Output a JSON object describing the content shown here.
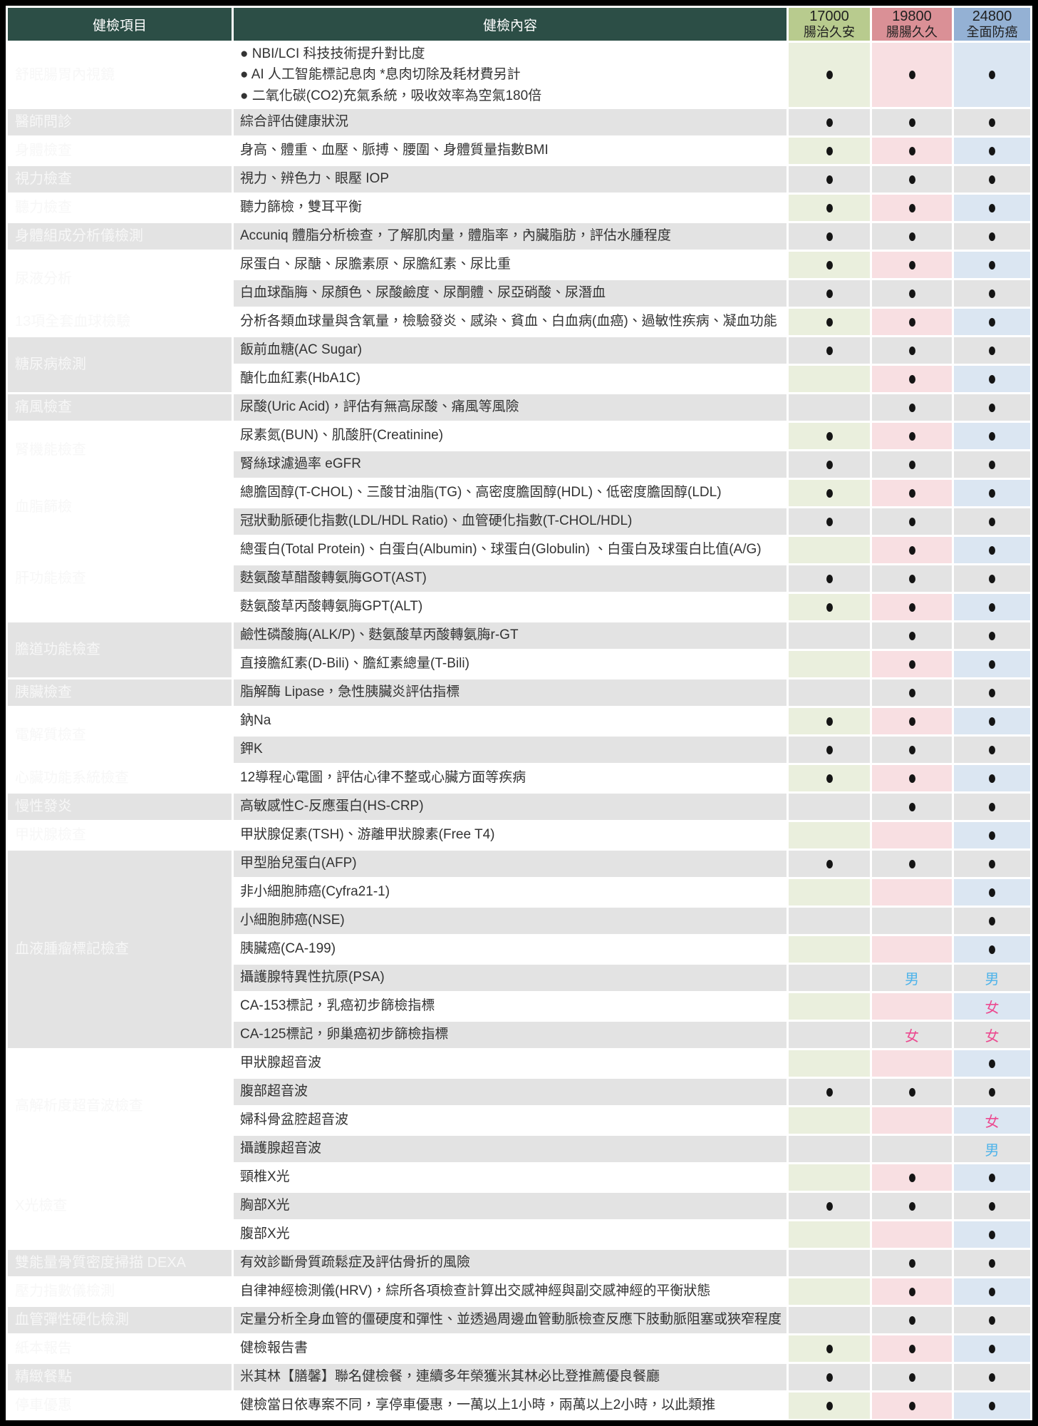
{
  "header": {
    "item_col": "健檢項目",
    "content_col": "健檢內容",
    "plans": [
      {
        "price": "17000",
        "name": "腸治久安"
      },
      {
        "price": "19800",
        "name": "腸腸久久"
      },
      {
        "price": "24800",
        "name": "全面防癌"
      }
    ]
  },
  "legend": {
    "male": "男",
    "female": "女",
    "dot": "●"
  },
  "colors": {
    "dark-green": "#2c4e46",
    "row-gray": "#e3e3e3",
    "content-text": "#333333",
    "item-text": "#f7f7f7",
    "header-text": "#1f1f1f",
    "dot": "#151515",
    "border": "#000000",
    "plan0-header": "#b8cb8e",
    "plan1-header": "#da9096",
    "plan2-header": "#94b1d4",
    "plan0-tint": "#eaefdd",
    "plan1-tint": "#f8dfe2",
    "plan2-tint": "#dbe6f2",
    "male": "#4db3ea",
    "female": "#ec4a90"
  },
  "groups": [
    {
      "item": "舒眠腸胃內視鏡",
      "rows": [
        {
          "lines": [
            "● NBI/LCI 科技技術提升對比度",
            "● AI 人工智能標記息肉 *息肉切除及耗材費另計",
            "● 二氧化碳(CO2)充氣系統，吸收效率為空氣180倍"
          ],
          "marks": [
            "dot",
            "dot",
            "dot"
          ],
          "tall": true
        }
      ]
    },
    {
      "item": "醫師問診",
      "rows": [
        {
          "content": "綜合評估健康狀況",
          "marks": [
            "dot",
            "dot",
            "dot"
          ]
        }
      ]
    },
    {
      "item": "身體檢查",
      "rows": [
        {
          "content": "身高、體重、血壓、脈搏、腰圍、身體質量指數BMI",
          "marks": [
            "dot",
            "dot",
            "dot"
          ]
        }
      ]
    },
    {
      "item": "視力檢查",
      "rows": [
        {
          "content": "視力、辨色力、眼壓 IOP",
          "marks": [
            "dot",
            "dot",
            "dot"
          ]
        }
      ]
    },
    {
      "item": "聽力檢查",
      "rows": [
        {
          "content": "聽力篩檢，雙耳平衡",
          "marks": [
            "dot",
            "dot",
            "dot"
          ]
        }
      ]
    },
    {
      "item": "身體組成分析儀檢測",
      "rows": [
        {
          "content": "Accuniq 體脂分析檢查，了解肌肉量，體脂率，內臟脂肪，評估水腫程度",
          "marks": [
            "dot",
            "dot",
            "dot"
          ]
        }
      ]
    },
    {
      "item": "尿液分析",
      "rows": [
        {
          "content": "尿蛋白、尿醣、尿膽素原、尿膽紅素、尿比重",
          "marks": [
            "dot",
            "dot",
            "dot"
          ]
        },
        {
          "content": "白血球酯脢、尿顏色、尿酸鹼度、尿酮體、尿亞硝酸、尿潛血",
          "marks": [
            "dot",
            "dot",
            "dot"
          ]
        }
      ]
    },
    {
      "item": "13項全套血球檢驗",
      "rows": [
        {
          "content": "分析各類血球量與含氧量，檢驗發炎、感染、貧血、白血病(血癌)、過敏性疾病、凝血功能",
          "marks": [
            "dot",
            "dot",
            "dot"
          ]
        }
      ]
    },
    {
      "item": "糖尿病檢測",
      "rows": [
        {
          "content": "飯前血糖(AC Sugar)",
          "marks": [
            "dot",
            "dot",
            "dot"
          ]
        },
        {
          "content": "醣化血紅素(HbA1C)",
          "marks": [
            "",
            "dot",
            "dot"
          ]
        }
      ]
    },
    {
      "item": "痛風檢查",
      "rows": [
        {
          "content": "尿酸(Uric Acid)，評估有無高尿酸、痛風等風險",
          "marks": [
            "",
            "dot",
            "dot"
          ]
        }
      ]
    },
    {
      "item": "腎機能檢查",
      "rows": [
        {
          "content": "尿素氮(BUN)、肌酸肝(Creatinine)",
          "marks": [
            "dot",
            "dot",
            "dot"
          ]
        },
        {
          "content": "腎絲球濾過率 eGFR",
          "marks": [
            "dot",
            "dot",
            "dot"
          ]
        }
      ]
    },
    {
      "item": "血脂篩檢",
      "rows": [
        {
          "content": "總膽固醇(T-CHOL)、三酸甘油脂(TG)、高密度膽固醇(HDL)、低密度膽固醇(LDL)",
          "marks": [
            "dot",
            "dot",
            "dot"
          ]
        },
        {
          "content": "冠狀動脈硬化指數(LDL/HDL Ratio)、血管硬化指數(T-CHOL/HDL)",
          "marks": [
            "dot",
            "dot",
            "dot"
          ]
        }
      ]
    },
    {
      "item": "肝功能檢查",
      "rows": [
        {
          "content": "總蛋白(Total Protein)、白蛋白(Albumin)、球蛋白(Globulin) 、白蛋白及球蛋白比值(A/G)",
          "marks": [
            "",
            "dot",
            "dot"
          ]
        },
        {
          "content": "麩氨酸草醋酸轉氨脢GOT(AST)",
          "marks": [
            "dot",
            "dot",
            "dot"
          ]
        },
        {
          "content": "麩氨酸草丙酸轉氨脢GPT(ALT)",
          "marks": [
            "dot",
            "dot",
            "dot"
          ]
        }
      ]
    },
    {
      "item": "膽道功能檢查",
      "rows": [
        {
          "content": "鹼性磷酸脢(ALK/P)、麩氨酸草丙酸轉氨脢r-GT",
          "marks": [
            "",
            "dot",
            "dot"
          ]
        },
        {
          "content": "直接膽紅素(D-Bili)、膽紅素總量(T-Bili)",
          "marks": [
            "",
            "dot",
            "dot"
          ]
        }
      ]
    },
    {
      "item": "胰臟檢查",
      "rows": [
        {
          "content": "脂解酶 Lipase，急性胰臟炎評估指標",
          "marks": [
            "",
            "dot",
            "dot"
          ]
        }
      ]
    },
    {
      "item": "電解質檢查",
      "rows": [
        {
          "content": "鈉Na",
          "marks": [
            "dot",
            "dot",
            "dot"
          ]
        },
        {
          "content": "鉀K",
          "marks": [
            "dot",
            "dot",
            "dot"
          ]
        }
      ]
    },
    {
      "item": "心臟功能系統檢查",
      "rows": [
        {
          "content": "12導程心電圖，評估心律不整或心臟方面等疾病",
          "marks": [
            "dot",
            "dot",
            "dot"
          ]
        }
      ]
    },
    {
      "item": "慢性發炎",
      "rows": [
        {
          "content": "高敏感性C-反應蛋白(HS-CRP)",
          "marks": [
            "",
            "dot",
            "dot"
          ]
        }
      ]
    },
    {
      "item": "甲狀腺檢查",
      "rows": [
        {
          "content": "甲狀腺促素(TSH)、游離甲狀腺素(Free T4)",
          "marks": [
            "",
            "",
            "dot"
          ]
        }
      ]
    },
    {
      "item": "血液腫瘤標記檢查",
      "rows": [
        {
          "content": "甲型胎兒蛋白(AFP)",
          "marks": [
            "dot",
            "dot",
            "dot"
          ]
        },
        {
          "content": "非小細胞肺癌(Cyfra21-1)",
          "marks": [
            "",
            "",
            "dot"
          ]
        },
        {
          "content": "小細胞肺癌(NSE)",
          "marks": [
            "",
            "",
            "dot"
          ]
        },
        {
          "content": "胰臟癌(CA-199)",
          "marks": [
            "",
            "",
            "dot"
          ]
        },
        {
          "content": "攝護腺特異性抗原(PSA)",
          "marks": [
            "",
            "male",
            "male"
          ]
        },
        {
          "content": "CA-153標記，乳癌初步篩檢指標",
          "marks": [
            "",
            "",
            "female"
          ]
        },
        {
          "content": "CA-125標記，卵巢癌初步篩檢指標",
          "marks": [
            "",
            "female",
            "female"
          ]
        }
      ]
    },
    {
      "item": "高解析度超音波檢查",
      "rows": [
        {
          "content": "甲狀腺超音波",
          "marks": [
            "",
            "",
            "dot"
          ]
        },
        {
          "content": "腹部超音波",
          "marks": [
            "dot",
            "dot",
            "dot"
          ]
        },
        {
          "content": "婦科骨盆腔超音波",
          "marks": [
            "",
            "",
            "female"
          ]
        },
        {
          "content": "攝護腺超音波",
          "marks": [
            "",
            "",
            "male"
          ]
        }
      ]
    },
    {
      "item": "X光檢查",
      "rows": [
        {
          "content": "頸椎X光",
          "marks": [
            "",
            "dot",
            "dot"
          ]
        },
        {
          "content": "胸部X光",
          "marks": [
            "dot",
            "dot",
            "dot"
          ]
        },
        {
          "content": "腹部X光",
          "marks": [
            "",
            "",
            "dot"
          ]
        }
      ]
    },
    {
      "item": "雙能量骨質密度掃描 DEXA",
      "rows": [
        {
          "content": "有效診斷骨質疏鬆症及評估骨折的風險",
          "marks": [
            "",
            "dot",
            "dot"
          ]
        }
      ]
    },
    {
      "item": "壓力指數儀檢測",
      "rows": [
        {
          "content": "自律神經檢測儀(HRV)，綜所各項檢查計算出交感神經與副交感神經的平衡狀態",
          "marks": [
            "",
            "dot",
            "dot"
          ]
        }
      ]
    },
    {
      "item": "血管彈性硬化檢測",
      "rows": [
        {
          "content": "定量分析全身血管的僵硬度和彈性、並透過周邊血管動脈檢查反應下肢動脈阻塞或狹窄程度",
          "marks": [
            "",
            "dot",
            "dot"
          ]
        }
      ]
    },
    {
      "item": "紙本報告",
      "rows": [
        {
          "content": "健檢報告書",
          "marks": [
            "dot",
            "dot",
            "dot"
          ]
        }
      ]
    },
    {
      "item": "精緻餐點",
      "rows": [
        {
          "content": "米其林【膳馨】聯名健檢餐，連續多年榮獲米其林必比登推薦優良餐廳",
          "marks": [
            "dot",
            "dot",
            "dot"
          ]
        }
      ]
    },
    {
      "item": "停車優惠",
      "rows": [
        {
          "content": "健檢當日依專案不同，享停車優惠，一萬以上1小時，兩萬以上2小時，以此類推",
          "marks": [
            "dot",
            "dot",
            "dot"
          ]
        }
      ]
    }
  ]
}
